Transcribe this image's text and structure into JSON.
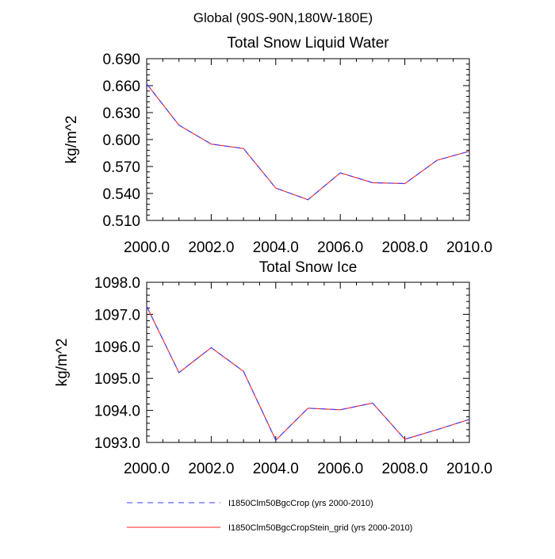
{
  "figure_title": "Global (90S-90N,180W-180E)",
  "legend": [
    {
      "label": "I1850Clm50BgcCrop (yrs 2000-2010)",
      "color": "#3a3aff",
      "dash": "dashed"
    },
    {
      "label": "I1850Clm50BgcCropStein_grid (yrs 2000-2010)",
      "color": "#ff2020",
      "dash": "solid"
    }
  ],
  "chart_data": [
    {
      "type": "line",
      "title": "Total Snow Liquid Water",
      "xlabel": "",
      "ylabel": "kg/m^2",
      "xlim": [
        2000,
        2010
      ],
      "ylim": [
        0.51,
        0.69
      ],
      "xticks": [
        2000,
        2002,
        2004,
        2006,
        2008,
        2010
      ],
      "xtick_labels": [
        "2000.0",
        "2002.0",
        "2004.0",
        "2006.0",
        "2008.0",
        "2010.0"
      ],
      "yticks": [
        0.51,
        0.54,
        0.57,
        0.6,
        0.63,
        0.66,
        0.69
      ],
      "ytick_labels": [
        "0.510",
        "0.540",
        "0.570",
        "0.600",
        "0.630",
        "0.660",
        "0.690"
      ],
      "x": [
        2000,
        2001,
        2002,
        2003,
        2004,
        2005,
        2006,
        2007,
        2008,
        2009,
        2010
      ],
      "series": [
        {
          "name": "I1850Clm50BgcCrop (yrs 2000-2010)",
          "values": [
            0.662,
            0.616,
            0.595,
            0.59,
            0.546,
            0.533,
            0.563,
            0.552,
            0.551,
            0.577,
            0.587
          ]
        },
        {
          "name": "I1850Clm50BgcCropStein_grid (yrs 2000-2010)",
          "values": [
            0.662,
            0.616,
            0.595,
            0.59,
            0.546,
            0.533,
            0.563,
            0.552,
            0.551,
            0.577,
            0.587
          ]
        }
      ]
    },
    {
      "type": "line",
      "title": "Total Snow Ice",
      "xlabel": "",
      "ylabel": "kg/m^2",
      "xlim": [
        2000,
        2010
      ],
      "ylim": [
        1093.0,
        1098.0
      ],
      "xticks": [
        2000,
        2002,
        2004,
        2006,
        2008,
        2010
      ],
      "xtick_labels": [
        "2000.0",
        "2002.0",
        "2004.0",
        "2006.0",
        "2008.0",
        "2010.0"
      ],
      "yticks": [
        1093.0,
        1094.0,
        1095.0,
        1096.0,
        1097.0,
        1098.0
      ],
      "ytick_labels": [
        "1093.0",
        "1094.0",
        "1095.0",
        "1096.0",
        "1097.0",
        "1098.0"
      ],
      "x": [
        2000,
        2001,
        2002,
        2003,
        2004,
        2005,
        2006,
        2007,
        2008,
        2009,
        2010
      ],
      "series": [
        {
          "name": "I1850Clm50BgcCrop (yrs 2000-2010)",
          "values": [
            1097.25,
            1095.18,
            1095.96,
            1095.22,
            1093.07,
            1094.07,
            1094.02,
            1094.23,
            1093.1,
            1093.4,
            1093.72
          ]
        },
        {
          "name": "I1850Clm50BgcCropStein_grid (yrs 2000-2010)",
          "values": [
            1097.25,
            1095.18,
            1095.96,
            1095.22,
            1093.07,
            1094.07,
            1094.02,
            1094.23,
            1093.1,
            1093.4,
            1093.72
          ]
        }
      ]
    }
  ]
}
